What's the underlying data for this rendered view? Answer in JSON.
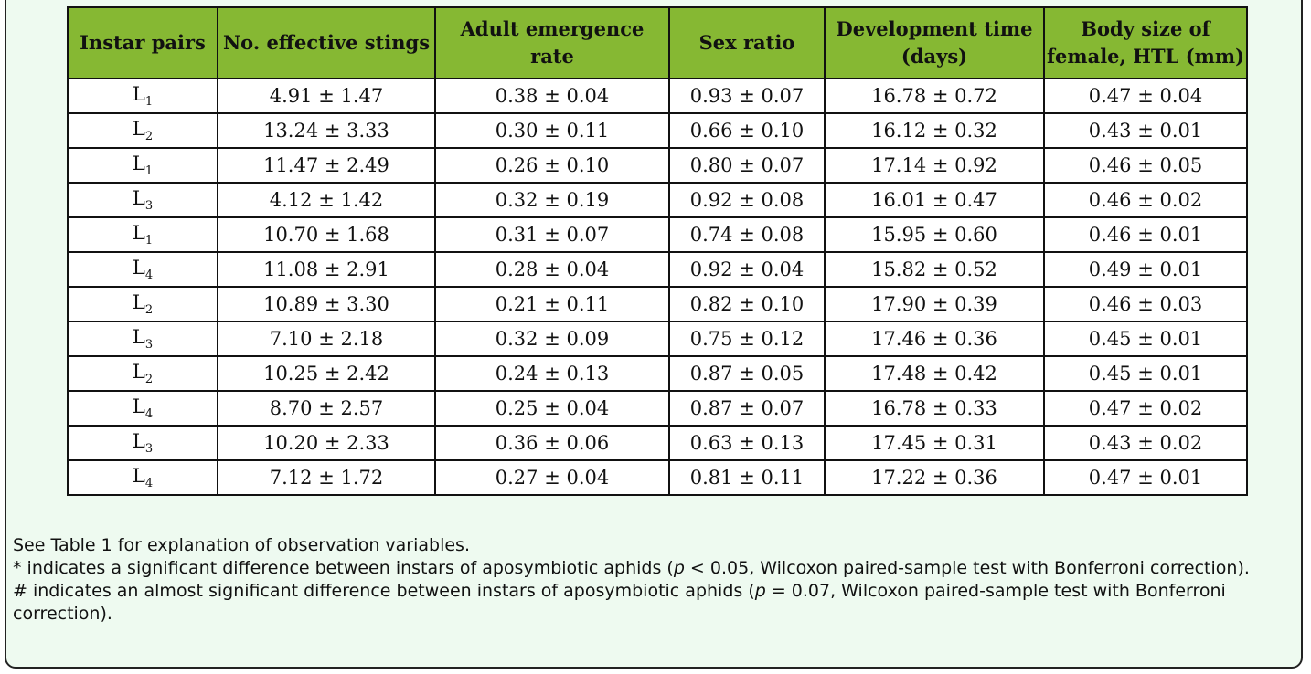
{
  "table": {
    "columns": [
      "Instar pairs",
      "No. effective stings",
      "Adult emergence rate",
      "Sex ratio",
      "Development time (days)",
      "Body size of female, HTL (mm)"
    ],
    "rows": [
      {
        "letter": "L",
        "sub": "1",
        "stings": "4.91 ± 1.47",
        "emergence": "0.38 ± 0.04",
        "sex": "0.93 ± 0.07",
        "dev": "16.78 ± 0.72",
        "size": "0.47 ± 0.04"
      },
      {
        "letter": "L",
        "sub": "2",
        "stings": "13.24 ± 3.33",
        "emergence": "0.30 ± 0.11",
        "sex": "0.66 ± 0.10",
        "dev": "16.12 ± 0.32",
        "size": "0.43 ± 0.01"
      },
      {
        "letter": "L",
        "sub": "1",
        "stings": "11.47 ± 2.49",
        "emergence": "0.26 ± 0.10",
        "sex": "0.80 ± 0.07",
        "dev": "17.14 ± 0.92",
        "size": "0.46 ± 0.05"
      },
      {
        "letter": "L",
        "sub": "3",
        "stings": "4.12 ± 1.42",
        "emergence": "0.32 ± 0.19",
        "sex": "0.92 ± 0.08",
        "dev": "16.01 ± 0.47",
        "size": "0.46 ± 0.02"
      },
      {
        "letter": "L",
        "sub": "1",
        "stings": "10.70 ± 1.68",
        "emergence": "0.31 ± 0.07",
        "sex": "0.74 ± 0.08",
        "dev": "15.95 ± 0.60",
        "size": "0.46 ± 0.01"
      },
      {
        "letter": "L",
        "sub": "4",
        "stings": "11.08 ± 2.91",
        "emergence": "0.28 ± 0.04",
        "sex": "0.92 ± 0.04",
        "dev": "15.82 ± 0.52",
        "size": "0.49 ± 0.01"
      },
      {
        "letter": "L",
        "sub": "2",
        "stings": "10.89 ± 3.30",
        "emergence": "0.21 ± 0.11",
        "sex": "0.82 ± 0.10",
        "dev": "17.90 ± 0.39",
        "size": "0.46 ± 0.03"
      },
      {
        "letter": "L",
        "sub": "3",
        "stings": "7.10 ± 2.18",
        "emergence": "0.32 ± 0.09",
        "sex": "0.75 ± 0.12",
        "dev": "17.46 ± 0.36",
        "size": "0.45 ± 0.01"
      },
      {
        "letter": "L",
        "sub": "2",
        "stings": "10.25 ± 2.42",
        "emergence": "0.24 ± 0.13",
        "sex": "0.87 ± 0.05",
        "dev": "17.48 ± 0.42",
        "size": "0.45 ± 0.01"
      },
      {
        "letter": "L",
        "sub": "4",
        "stings": "8.70 ± 2.57",
        "emergence": "0.25 ± 0.04",
        "sex": "0.87 ± 0.07",
        "dev": "16.78 ± 0.33",
        "size": "0.47 ± 0.02"
      },
      {
        "letter": "L",
        "sub": "3",
        "stings": "10.20 ± 2.33",
        "emergence": "0.36 ± 0.06",
        "sex": "0.63 ± 0.13",
        "dev": "17.45 ± 0.31",
        "size": "0.43 ± 0.02"
      },
      {
        "letter": "L",
        "sub": "4",
        "stings": "7.12 ± 1.72",
        "emergence": "0.27 ± 0.04",
        "sex": "0.81 ± 0.11",
        "dev": "17.22 ± 0.36",
        "size": "0.47 ± 0.01"
      }
    ]
  },
  "notes": {
    "line1": "See Table 1 for explanation of observation variables.",
    "line2_before": "* indicates a significant difference between instars of aposymbiotic aphids (",
    "line2_p": "p",
    "line2_after": " < 0.05, Wilcoxon paired-sample test with Bonferroni correction).",
    "line3_before": "# indicates an almost significant difference between instars of aposymbiotic aphids (",
    "line3_p": "p",
    "line3_after": " = 0.07, Wilcoxon paired-sample test with Bonferroni correction)."
  },
  "colors": {
    "header_bg": "#86b833",
    "panel_bg": "#eefaf0"
  }
}
